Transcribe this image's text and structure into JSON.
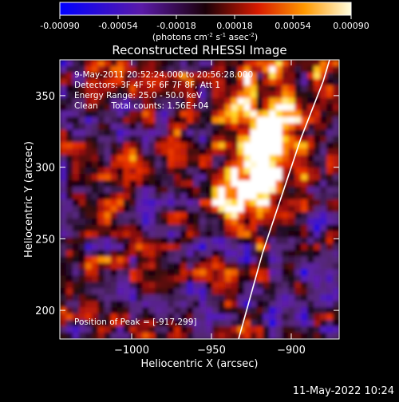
{
  "colorbar": {
    "ticks": [
      {
        "label": "-0.00090",
        "value": -0.0009
      },
      {
        "label": "-0.00054",
        "value": -0.00054
      },
      {
        "label": "-0.00018",
        "value": -0.00018
      },
      {
        "label": "0.00018",
        "value": 0.00018
      },
      {
        "label": "0.00054",
        "value": 0.00054
      },
      {
        "label": "0.00090",
        "value": 0.0009
      }
    ],
    "range": [
      -0.0009,
      0.0009
    ],
    "unit_base": "(photons cm",
    "unit_exp1": "-2",
    "unit_mid": " s",
    "unit_exp2": "-1",
    "unit_mid2": " asec",
    "unit_exp3": "-2",
    "unit_end": ")"
  },
  "chart_data": {
    "type": "heatmap",
    "title": "Reconstructed RHESSI Image",
    "xlabel": "Heliocentric X (arcsec)",
    "ylabel": "Heliocentric Y (arcsec)",
    "xlim": [
      -1045,
      -870
    ],
    "ylim": [
      180,
      375
    ],
    "x_ticks": [
      {
        "label": "−1000",
        "value": -1000
      },
      {
        "label": "−950",
        "value": -950
      },
      {
        "label": "−900",
        "value": -900
      }
    ],
    "y_ticks": [
      {
        "label": "200",
        "value": 200
      },
      {
        "label": "250",
        "value": 250
      },
      {
        "label": "300",
        "value": 300
      },
      {
        "label": "350",
        "value": 350
      }
    ],
    "annotations": [
      "9-May-2011 20:52:24.000 to 20:56:28.000",
      "Detectors: 3F 4F 5F 6F 7F 8F, Att 1",
      "Energy Range: 25.0 - 50.0 keV",
      "Clean     Total counts: 1.56E+04"
    ],
    "peak_label": "Position of Peak = [-917,299]",
    "peak": [
      -917,
      299
    ],
    "limb": [
      [
        -933,
        180
      ],
      [
        -928,
        200
      ],
      [
        -923,
        220
      ],
      [
        -918,
        240
      ],
      [
        -912,
        260
      ],
      [
        -906,
        280
      ],
      [
        -900,
        300
      ],
      [
        -894,
        320
      ],
      [
        -887,
        340
      ],
      [
        -880,
        360
      ],
      [
        -876,
        375
      ]
    ],
    "colors": [
      "#0000ff",
      "#6a1fb0",
      "#5a2a7a",
      "#1a0a10",
      "#9a0f0f",
      "#e62a00",
      "#ff8c00",
      "#ffd21e",
      "#ffffff"
    ]
  },
  "timestamp": "11-May-2022 10:24"
}
